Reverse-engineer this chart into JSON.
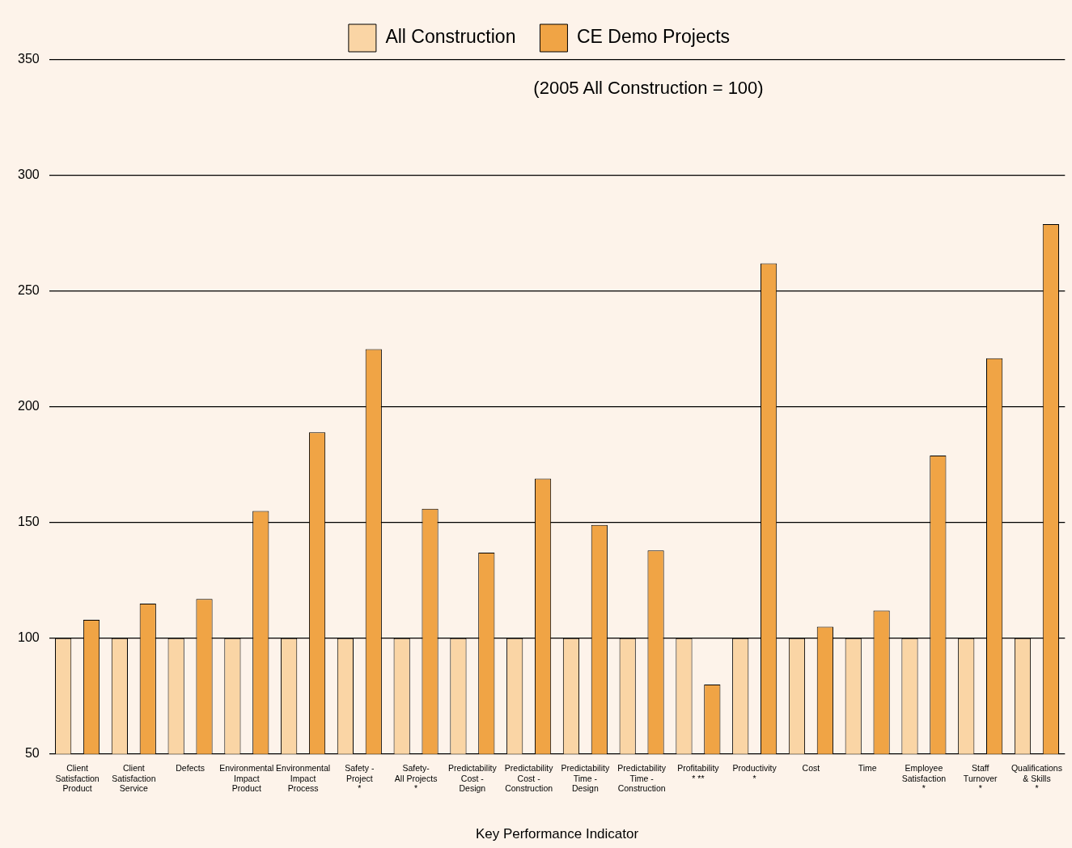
{
  "chart_data": {
    "type": "bar",
    "xlabel": "Key Performance Indicator",
    "annotations": [
      "(2005 All Construction = 100)"
    ],
    "categories": [
      "Client\nSatisfaction\nProduct",
      "Client\nSatisfaction\nService",
      "Defects",
      "Environmental\nImpact\nProduct",
      "Environmental\nImpact\nProcess",
      "Safety -\nProject\n*",
      "Safety-\nAll Projects\n*",
      "Predictability\nCost -\nDesign",
      "Predictability\nCost -\nConstruction",
      "Predictability\nTime -\nDesign",
      "Predictability\nTime -\nConstruction",
      "Profitability\n* **",
      "Productivity\n*",
      "Cost",
      "Time",
      "Employee\nSatisfaction\n*",
      "Staff\nTurnover\n*",
      "Qualifications\n& Skills\n*"
    ],
    "series": [
      {
        "name": "All Construction",
        "color": "#fad5a5",
        "values": [
          100,
          100,
          100,
          100,
          100,
          100,
          100,
          100,
          100,
          100,
          100,
          100,
          100,
          100,
          100,
          100,
          100,
          100
        ]
      },
      {
        "name": "CE Demo Projects",
        "color": "#f0a445",
        "values": [
          108,
          115,
          117,
          155,
          189,
          225,
          156,
          137,
          169,
          149,
          138,
          80,
          262,
          105,
          112,
          179,
          221,
          279
        ]
      }
    ],
    "ylim": [
      50,
      350
    ],
    "yticks": [
      50,
      100,
      150,
      200,
      250,
      300,
      350
    ],
    "grid": "y",
    "legend": "top"
  }
}
